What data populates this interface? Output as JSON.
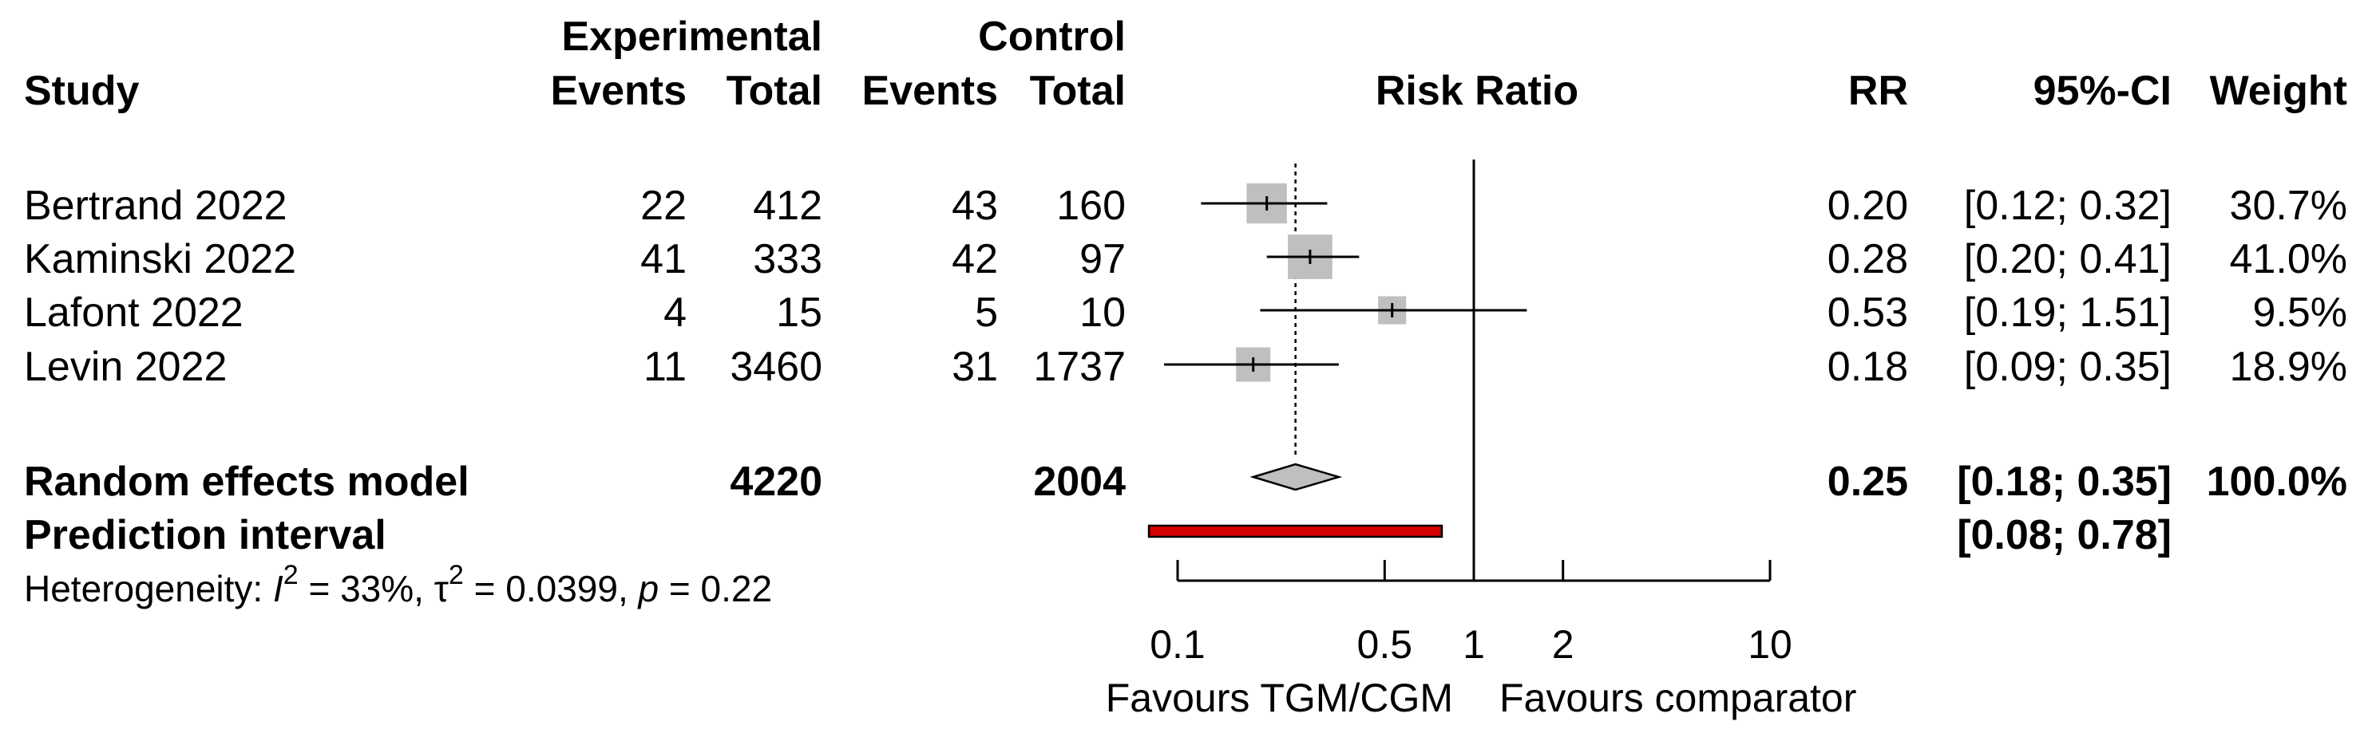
{
  "headers": {
    "experimental": "Experimental",
    "control": "Control",
    "study": "Study",
    "events": "Events",
    "total": "Total",
    "risk_ratio": "Risk Ratio",
    "rr": "RR",
    "ci": "95%-CI",
    "weight": "Weight"
  },
  "studies": [
    {
      "name": "Bertrand 2022",
      "e_events": "22",
      "e_total": "412",
      "c_events": "43",
      "c_total": "160",
      "rr_text": "0.20",
      "ci_text": "[0.12; 0.32]",
      "weight_text": "30.7%"
    },
    {
      "name": "Kaminski 2022",
      "e_events": "41",
      "e_total": "333",
      "c_events": "42",
      "c_total": "97",
      "rr_text": "0.28",
      "ci_text": "[0.20; 0.41]",
      "weight_text": "41.0%"
    },
    {
      "name": "Lafont 2022",
      "e_events": "4",
      "e_total": "15",
      "c_events": "5",
      "c_total": "10",
      "rr_text": "0.53",
      "ci_text": "[0.19; 1.51]",
      "weight_text": "9.5%"
    },
    {
      "name": "Levin 2022",
      "e_events": "11",
      "e_total": "3460",
      "c_events": "31",
      "c_total": "1737",
      "rr_text": "0.18",
      "ci_text": "[0.09; 0.35]",
      "weight_text": "18.9%"
    }
  ],
  "summary": {
    "label": "Random effects model",
    "e_total": "4220",
    "c_total": "2004",
    "rr_text": "0.25",
    "ci_text": "[0.18; 0.35]",
    "weight_text": "100.0%"
  },
  "prediction": {
    "label": "Prediction interval",
    "ci_text": "[0.08; 0.78]"
  },
  "heterogeneity": {
    "prefix": "Heterogeneity: ",
    "i_symbol": "I",
    "i_sup": "2",
    "i_value": " = 33%, ",
    "tau_symbol": "τ",
    "tau_sup": "2",
    "tau_value": " = 0.0399, ",
    "p_symbol": "p",
    "p_value": " = 0.22"
  },
  "axis": {
    "favours_left": "Favours TGM/CGM",
    "favours_right": "Favours comparator"
  },
  "colors": {
    "box": "#bfbfbf",
    "diamond": "#bfbfbf",
    "prediction": "#d40000"
  },
  "chart_data": {
    "type": "forest",
    "title": "Risk Ratio",
    "scale": "log",
    "xlim": [
      0.1,
      10
    ],
    "ticks": [
      0.1,
      0.5,
      1,
      2,
      10
    ],
    "tick_labels": [
      "0.1",
      "0.5",
      "1",
      "2",
      "10"
    ],
    "null_value": 1,
    "studies": [
      {
        "name": "Bertrand 2022",
        "rr": 0.2,
        "lower": 0.12,
        "upper": 0.32,
        "weight": 30.7
      },
      {
        "name": "Kaminski 2022",
        "rr": 0.28,
        "lower": 0.2,
        "upper": 0.41,
        "weight": 41.0
      },
      {
        "name": "Lafont 2022",
        "rr": 0.53,
        "lower": 0.19,
        "upper": 1.51,
        "weight": 9.5
      },
      {
        "name": "Levin 2022",
        "rr": 0.18,
        "lower": 0.09,
        "upper": 0.35,
        "weight": 18.9
      }
    ],
    "pooled": {
      "rr": 0.25,
      "lower": 0.18,
      "upper": 0.35
    },
    "prediction_interval": {
      "lower": 0.08,
      "upper": 0.78
    }
  }
}
